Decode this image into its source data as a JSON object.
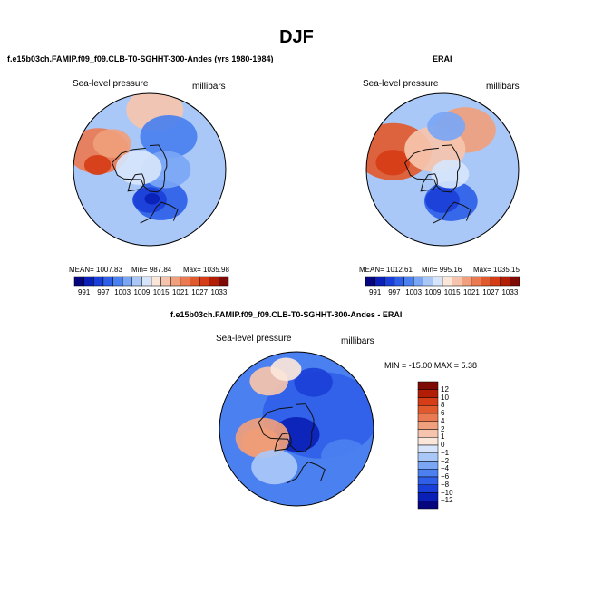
{
  "page": {
    "title": "DJF"
  },
  "panels": {
    "model": {
      "title": "f.e15b03ch.FAMIP.f09_f09.CLB-T0-SGHHT-300-Andes (yrs 1980-1984)",
      "variable": "Sea-level pressure",
      "units": "millibars",
      "stats": {
        "mean": "MEAN= 1007.83",
        "min": "Min= 987.84",
        "max": "Max= 1035.98"
      }
    },
    "obs": {
      "title": "ERAI",
      "variable": "Sea-level pressure",
      "units": "millibars",
      "stats": {
        "mean": "MEAN= 1012.61",
        "min": "Min= 995.16",
        "max": "Max= 1035.15"
      }
    },
    "diff": {
      "title": "f.e15b03ch.FAMIP.f09_f09.CLB-T0-SGHHT-300-Andes - ERAI",
      "variable": "Sea-level pressure",
      "units": "millibars",
      "minmax": "MIN = -15.00  MAX =   5.38"
    }
  },
  "chart_data": [
    {
      "type": "heatmap",
      "title": "f.e15b03ch.FAMIP.f09_f09.CLB-T0-SGHHT-300-Andes (yrs 1980-1984)",
      "projection": "north-polar-stereographic",
      "variable": "Sea-level pressure",
      "units": "millibars",
      "colorbar_ticks": [
        "991",
        "997",
        "1003",
        "1009",
        "1015",
        "1021",
        "1027",
        "1033"
      ],
      "colorbar_colors": [
        "#05057e",
        "#0a1fb5",
        "#1a3fd8",
        "#2f5fe8",
        "#4a80f0",
        "#7aa6f5",
        "#a9c8f8",
        "#d6e5fb",
        "#fbe6da",
        "#f6c4ac",
        "#f0a07c",
        "#ea7a52",
        "#e15a2e",
        "#d63c16",
        "#b21d06",
        "#7e0a05"
      ],
      "mean": 1007.83,
      "min": 987.84,
      "max": 1035.98,
      "regions": [
        {
          "value": 1027,
          "color": "#ea7a52",
          "lat": 40,
          "lon": -110,
          "size": 16
        },
        {
          "value": 1021,
          "color": "#f0a07c",
          "lat": 48,
          "lon": -125,
          "size": 10
        },
        {
          "value": 1033,
          "color": "#d63c16",
          "lat": 42,
          "lon": -95,
          "size": 7
        },
        {
          "value": 1015,
          "color": "#f6c4ac",
          "lat": 35,
          "lon": 175,
          "size": 15
        },
        {
          "value": 1003,
          "color": "#2f5fe8",
          "lat": 60,
          "lon": 20,
          "size": 14
        },
        {
          "value": 997,
          "color": "#1a3fd8",
          "lat": 62,
          "lon": 0,
          "size": 9
        },
        {
          "value": 991,
          "color": "#0a1fb5",
          "lat": 63,
          "lon": 5,
          "size": 4
        },
        {
          "value": 1003,
          "color": "#4a80f0",
          "lat": 55,
          "lon": 150,
          "size": 15
        },
        {
          "value": 1009,
          "color": "#7aa6f5",
          "lat": 75,
          "lon": 90,
          "size": 13
        },
        {
          "value": 1015,
          "color": "#d6e5fb",
          "lat": 80,
          "lon": -100,
          "size": 12
        }
      ]
    },
    {
      "type": "heatmap",
      "title": "ERAI",
      "projection": "north-polar-stereographic",
      "variable": "Sea-level pressure",
      "units": "millibars",
      "colorbar_ticks": [
        "991",
        "997",
        "1003",
        "1009",
        "1015",
        "1021",
        "1027",
        "1033"
      ],
      "colorbar_colors": [
        "#05057e",
        "#0a1fb5",
        "#1a3fd8",
        "#2f5fe8",
        "#4a80f0",
        "#7aa6f5",
        "#a9c8f8",
        "#d6e5fb",
        "#fbe6da",
        "#f6c4ac",
        "#f0a07c",
        "#ea7a52",
        "#e15a2e",
        "#d63c16",
        "#b21d06",
        "#7e0a05"
      ],
      "mean": 1012.61,
      "min": 995.16,
      "max": 1035.15,
      "regions": [
        {
          "value": 1027,
          "color": "#e15a2e",
          "lat": 42,
          "lon": -110,
          "size": 20
        },
        {
          "value": 1033,
          "color": "#d63c16",
          "lat": 44,
          "lon": -98,
          "size": 9
        },
        {
          "value": 1021,
          "color": "#f0a07c",
          "lat": 48,
          "lon": 150,
          "size": 16
        },
        {
          "value": 1015,
          "color": "#f6c4ac",
          "lat": 70,
          "lon": -160,
          "size": 16
        },
        {
          "value": 1003,
          "color": "#2f5fe8",
          "lat": 60,
          "lon": 15,
          "size": 14
        },
        {
          "value": 997,
          "color": "#1a3fd8",
          "lat": 62,
          "lon": 0,
          "size": 9
        },
        {
          "value": 1009,
          "color": "#7aa6f5",
          "lat": 50,
          "lon": 175,
          "size": 10
        },
        {
          "value": 1015,
          "color": "#d6e5fb",
          "lat": 82,
          "lon": 60,
          "size": 10
        }
      ]
    },
    {
      "type": "heatmap",
      "title": "f.e15b03ch.FAMIP.f09_f09.CLB-T0-SGHHT-300-Andes - ERAI",
      "projection": "north-polar-stereographic",
      "variable": "Sea-level pressure",
      "units": "millibars",
      "min": -15.0,
      "max": 5.38,
      "colorbar_ticks": [
        "12",
        "10",
        "8",
        "6",
        "4",
        "2",
        "1",
        "0",
        "-1",
        "-2",
        "-4",
        "-6",
        "-8",
        "-10",
        "-12"
      ],
      "colorbar_colors": [
        "#7e0a05",
        "#b21d06",
        "#d63c16",
        "#e15a2e",
        "#ea7a52",
        "#f0a07c",
        "#f6c4ac",
        "#fbe6da",
        "#d6e5fb",
        "#a9c8f8",
        "#7aa6f5",
        "#4a80f0",
        "#2f5fe8",
        "#1a3fd8",
        "#0a1fb5",
        "#05057e"
      ],
      "regions": [
        {
          "value": -8,
          "color": "#2f5fe8",
          "lat": 65,
          "lon": 120,
          "size": 30
        },
        {
          "value": -12,
          "color": "#0a1fb5",
          "lat": 85,
          "lon": 0,
          "size": 12
        },
        {
          "value": -10,
          "color": "#1a3fd8",
          "lat": 45,
          "lon": 160,
          "size": 10
        },
        {
          "value": 4,
          "color": "#ea7a52",
          "lat": 55,
          "lon": -70,
          "size": 10
        },
        {
          "value": 2,
          "color": "#f0a07c",
          "lat": 58,
          "lon": -75,
          "size": 14
        },
        {
          "value": 1,
          "color": "#f6c4ac",
          "lat": 40,
          "lon": -150,
          "size": 10
        },
        {
          "value": 0,
          "color": "#fbe6da",
          "lat": 35,
          "lon": -170,
          "size": 8
        },
        {
          "value": -2,
          "color": "#a9c8f8",
          "lat": 50,
          "lon": -30,
          "size": 12
        },
        {
          "value": -6,
          "color": "#4a80f0",
          "lat": 40,
          "lon": 60,
          "size": 12
        }
      ]
    }
  ]
}
